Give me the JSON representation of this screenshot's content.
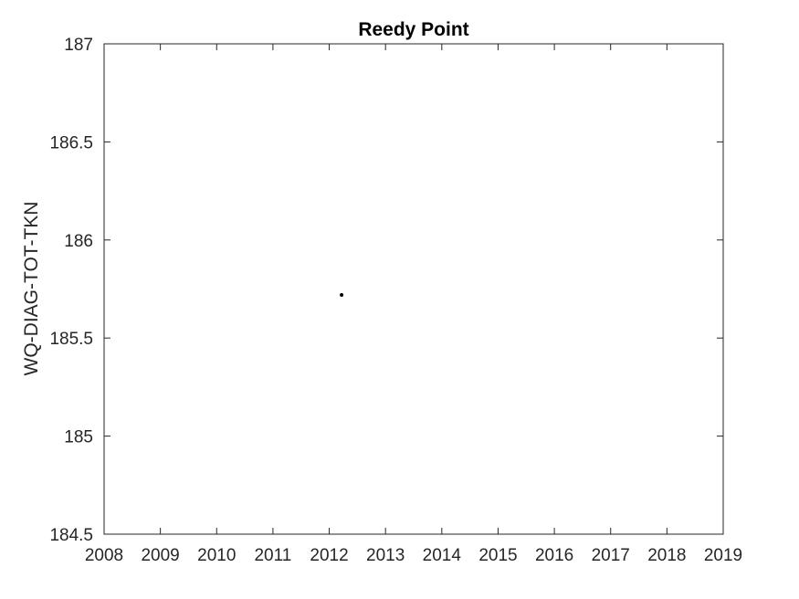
{
  "chart_data": {
    "type": "scatter",
    "title": "Reedy Point",
    "xlabel": "",
    "ylabel": "WQ-DIAG-TOT-TKN",
    "xlim": [
      2008,
      2019
    ],
    "ylim": [
      184.5,
      187
    ],
    "x_ticks": [
      "2008",
      "2009",
      "2010",
      "2011",
      "2012",
      "2013",
      "2014",
      "2015",
      "2016",
      "2017",
      "2018",
      "2019"
    ],
    "y_ticks": [
      "184.5",
      "185",
      "185.5",
      "186",
      "186.5",
      "187"
    ],
    "grid": false,
    "legend": "none",
    "series": [
      {
        "x": [
          2012.22
        ],
        "y": [
          185.72
        ],
        "color": "#000000"
      }
    ]
  }
}
